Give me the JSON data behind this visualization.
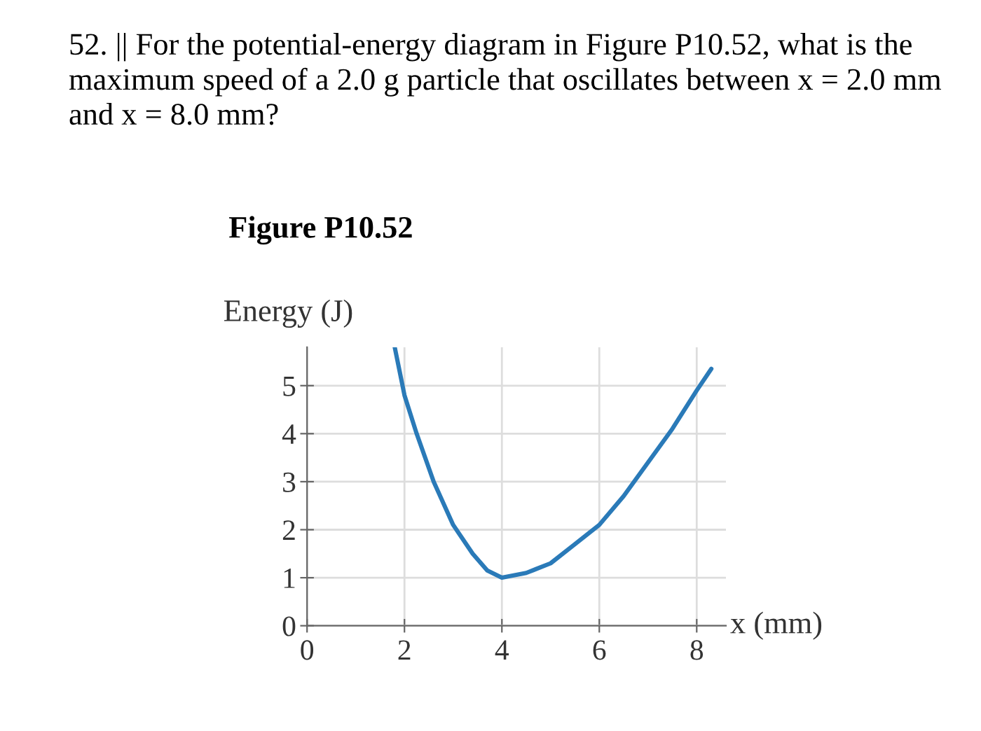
{
  "chart_data": {
    "type": "line",
    "title": "52. || For the potential-energy diagram in Figure P10.52, what is the maximum speed of a 2.0 g particle that oscillates between x = 2.0 mm and x = 8.0 mm?",
    "subtitle": "Figure P10.52",
    "ylabel": "Energy (J)",
    "xlabel": "x (mm)",
    "series": [
      {
        "color": "#2a7ab8",
        "x": [
          1.8,
          1.9,
          2.0,
          2.25,
          2.6,
          3.0,
          3.4,
          3.7,
          4.0,
          4.5,
          5.0,
          5.5,
          6.0,
          6.5,
          7.0,
          7.5,
          8.0,
          8.3
        ],
        "values": [
          5.8,
          5.3,
          4.8,
          4.0,
          3.0,
          2.1,
          1.5,
          1.15,
          1.0,
          1.1,
          1.3,
          1.7,
          2.1,
          2.7,
          3.4,
          4.1,
          4.9,
          5.35
        ]
      }
    ],
    "xlim": [
      0,
      8.6
    ],
    "ylim": [
      0,
      5.8
    ],
    "xticks": [
      0,
      2,
      4,
      6,
      8
    ],
    "yticks": [
      0,
      1,
      2,
      3,
      4,
      5
    ],
    "grid": true,
    "marker": "none",
    "line_style": "solid",
    "legend": false
  }
}
